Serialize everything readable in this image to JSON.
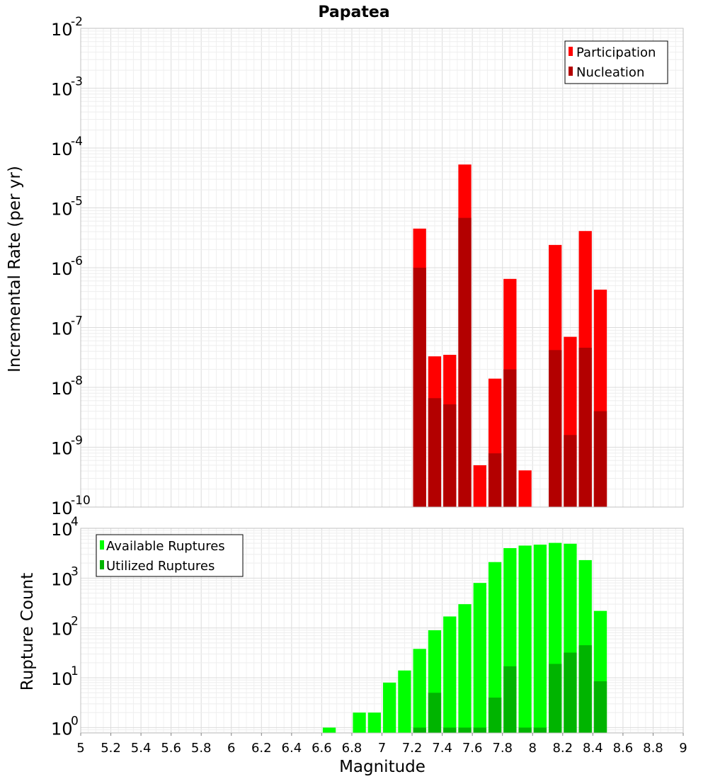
{
  "title": "Papatea",
  "colors": {
    "participation": "#ff0000",
    "nucleation": "#b30000",
    "available": "#00ff00",
    "utilized": "#00b400",
    "grid": "#e6e6e6",
    "frame": "#c0c0c0"
  },
  "chart_data": [
    {
      "type": "bar",
      "panel": "rate",
      "title": "Papatea",
      "xlabel": "",
      "ylabel": "Incremental Rate (per yr)",
      "yscale": "log",
      "xlim": [
        5,
        9
      ],
      "ylim": [
        1e-10,
        0.01
      ],
      "grid": true,
      "legend_position": "top-right",
      "y_ticks": [
        {
          "base": "10",
          "exp": "-10"
        },
        {
          "base": "10",
          "exp": "-9"
        },
        {
          "base": "10",
          "exp": "-8"
        },
        {
          "base": "10",
          "exp": "-7"
        },
        {
          "base": "10",
          "exp": "-6"
        },
        {
          "base": "10",
          "exp": "-5"
        },
        {
          "base": "10",
          "exp": "-4"
        },
        {
          "base": "10",
          "exp": "-3"
        },
        {
          "base": "10",
          "exp": "-2"
        }
      ],
      "x": [
        7.25,
        7.35,
        7.45,
        7.55,
        7.65,
        7.75,
        7.85,
        7.95,
        8.15,
        8.25,
        8.35,
        8.45
      ],
      "series": [
        {
          "name": "Participation",
          "color": "#ff0000",
          "values": [
            4.5e-06,
            3.3e-08,
            3.5e-08,
            5.3e-05,
            5e-10,
            1.4e-08,
            6.5e-07,
            4.1e-10,
            2.4e-06,
            7e-08,
            4.1e-06,
            4.3e-07
          ]
        },
        {
          "name": "Nucleation",
          "color": "#b30000",
          "values": [
            1e-06,
            6.6e-09,
            5.2e-09,
            6.8e-06,
            null,
            7.9e-10,
            2e-08,
            null,
            4.2e-08,
            1.6e-09,
            4.6e-08,
            4e-09
          ]
        }
      ]
    },
    {
      "type": "bar",
      "panel": "count",
      "xlabel": "Magnitude",
      "ylabel": "Rupture Count",
      "yscale": "log",
      "xlim": [
        5,
        9
      ],
      "ylim": [
        0.78,
        10000
      ],
      "grid": true,
      "legend_position": "top-left",
      "x_ticks": [
        "5",
        "5.2",
        "5.4",
        "5.6",
        "5.8",
        "6",
        "6.2",
        "6.4",
        "6.6",
        "6.8",
        "7",
        "7.2",
        "7.4",
        "7.6",
        "7.8",
        "8",
        "8.2",
        "8.4",
        "8.6",
        "8.8",
        "9"
      ],
      "y_ticks": [
        {
          "base": "10",
          "exp": "0"
        },
        {
          "base": "10",
          "exp": "1"
        },
        {
          "base": "10",
          "exp": "2"
        },
        {
          "base": "10",
          "exp": "3"
        },
        {
          "base": "10",
          "exp": "4"
        }
      ],
      "x": [
        6.65,
        6.85,
        6.95,
        7.05,
        7.15,
        7.25,
        7.35,
        7.45,
        7.55,
        7.65,
        7.75,
        7.85,
        7.95,
        8.05,
        8.15,
        8.25,
        8.35,
        8.45
      ],
      "series": [
        {
          "name": "Available Ruptures",
          "color": "#00ff00",
          "values": [
            1,
            2,
            2,
            8,
            14,
            38,
            90,
            170,
            300,
            800,
            2100,
            4000,
            4500,
            4700,
            5100,
            4900,
            2300,
            220
          ]
        },
        {
          "name": "Utilized Ruptures",
          "color": "#00b400",
          "values": [
            null,
            null,
            null,
            null,
            null,
            1,
            5,
            1,
            1,
            1,
            4,
            17,
            1,
            1,
            19,
            32,
            45,
            8.5
          ]
        }
      ]
    }
  ]
}
